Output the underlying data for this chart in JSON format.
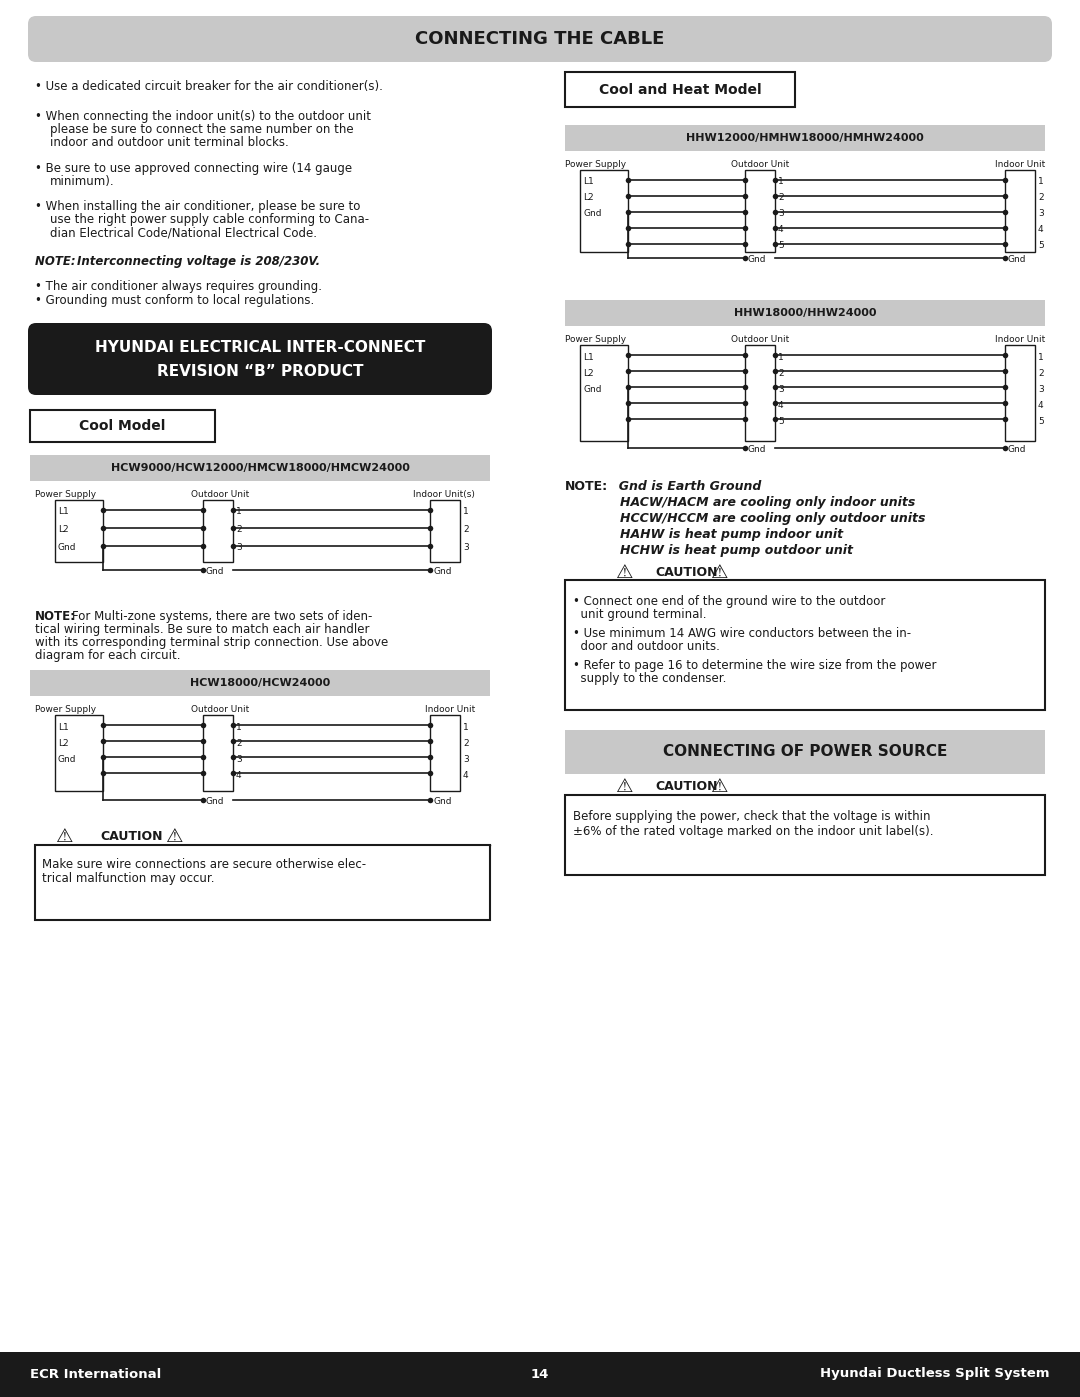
{
  "title": "CONNECTING THE CABLE",
  "page_num": "14",
  "footer_left": "ECR International",
  "footer_right": "Hyundai Ductless Split System",
  "bg_color": "#ffffff",
  "header_bg": "#c8c8c8",
  "header_text_color": "#1a1a1a",
  "bullet_points": [
    "Use a dedicated circuit breaker for the air conditioner(s).",
    "When connecting the indoor unit(s) to the outdoor unit please be sure to connect the same number on the indoor and outdoor unit terminal blocks.",
    "Be sure to use approved connecting wire (14 gauge minimum).",
    "When installing the air conditioner, please be sure to use the right power supply cable conforming to Canadian Electrical Code/National Electrical Code."
  ],
  "note_text": "NOTE: Interconnecting voltage is 208/230V.",
  "grounding_bullets": [
    "The air conditioner always requires grounding.",
    "Grounding must conform to local regulations."
  ],
  "hyundai_box_text": [
    "HYUNDAI ELECTRICAL INTER-CONNECT",
    "REVISION “B” PRODUCT"
  ],
  "cool_model_title": "Cool Model",
  "cool_model_section1_title": "HCW9000/HCW12000/HMCW18000/HMCW24000",
  "cool_model_section2_title": "HCW18000/HCW24000",
  "cool_heat_title": "Cool and Heat Model",
  "cool_heat_section1_title": "HHW12000/HMHW18000/HMHW24000",
  "cool_heat_section2_title": "HHW18000/HHW24000",
  "note_gnd_lines": [
    "Gnd is Earth Ground",
    "HACW/HACM are cooling only indoor units",
    "HCCW/HCCM are cooling only outdoor units",
    "HAHW is heat pump indoor unit",
    "HCHW is heat pump outdoor unit"
  ],
  "caution_left_text": "Make sure wire connections are secure otherwise electrical malfunction may occur.",
  "caution_right_bullets": [
    "Connect one end of the ground wire to the outdoor unit ground terminal.",
    "Use minimum 14 AWG wire conductors between the indoor and outdoor units.",
    "Refer to page 16 to determine the wire size from the power supply to the condenser."
  ],
  "power_source_title": "CONNECTING OF POWER SOURCE",
  "power_source_caution_text": "Before supplying the power, check that the voltage is within ±6% of the rated voltage marked on the indoor unit label(s).",
  "lc": "#1a1a1a",
  "dc": "#1a1a1a"
}
